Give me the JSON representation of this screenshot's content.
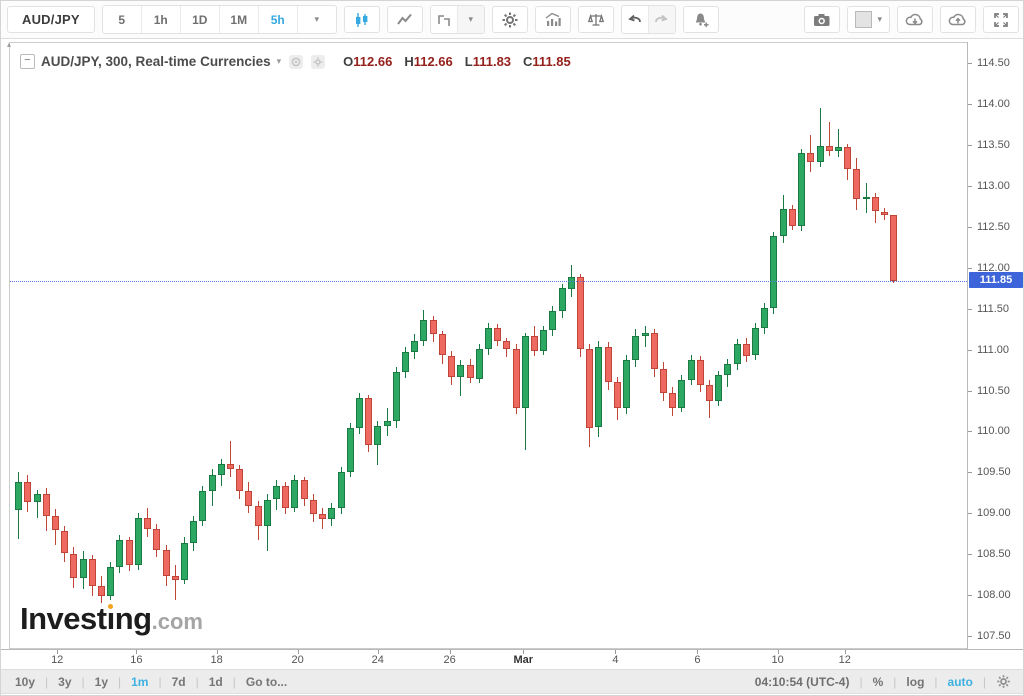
{
  "toolbar": {
    "symbol": "AUD/JPY",
    "intervals": [
      "5",
      "1h",
      "1D",
      "1M",
      "5h"
    ],
    "active_interval": "5h",
    "caret": "▾"
  },
  "legend": {
    "collapse_glyph": "−",
    "title": "AUD/JPY, 300, Real-time Currencies",
    "caret": "▾",
    "ohlc": [
      {
        "k": "O",
        "v": "112.66"
      },
      {
        "k": "H",
        "v": "112.66"
      },
      {
        "k": "L",
        "v": "111.83"
      },
      {
        "k": "C",
        "v": "111.85"
      }
    ]
  },
  "watermark": {
    "text": "Investing.com",
    "p1": "Invest",
    "p2": "ng",
    "suffix": ".com"
  },
  "price_scale": {
    "tag": "111.85"
  },
  "bottom_bar": {
    "ranges": [
      "10y",
      "3y",
      "1y",
      "1m",
      "7d",
      "1d"
    ],
    "active_range": "1m",
    "goto_label": "Go to...",
    "clock": "04:10:54 (UTC-4)",
    "percent_label": "%",
    "log_label": "log",
    "auto_label": "auto",
    "separator": "|"
  },
  "colors": {
    "up_fill": "#2DA863",
    "up_stroke": "#1B7A44",
    "down_fill": "#EE6A60",
    "down_stroke": "#BF4539",
    "accent_blue": "#35A9E0",
    "tag_blue": "#3D64D8",
    "line_blue": "#5A78DC",
    "ohlc_red": "#94211C",
    "axis_text": "#555555",
    "icon_gray": "#8A8A8A"
  },
  "chart_data": {
    "type": "candlestick",
    "title": "AUD/JPY, 300, Real-time Currencies",
    "symbol": "AUD/JPY",
    "interval_minutes": 300,
    "grid": false,
    "legend_position": "top-left",
    "ylim": [
      107.34,
      114.76
    ],
    "y_ticks": [
      114.5,
      114.0,
      113.5,
      113.0,
      112.5,
      112.0,
      111.5,
      111.0,
      110.5,
      110.0,
      109.5,
      109.0,
      108.5,
      108.0,
      107.5
    ],
    "x_ticks": [
      {
        "label": "12",
        "index": 4.3
      },
      {
        "label": "16",
        "index": 12.9
      },
      {
        "label": "18",
        "index": 21.6
      },
      {
        "label": "20",
        "index": 30.4
      },
      {
        "label": "24",
        "index": 39.1
      },
      {
        "label": "26",
        "index": 46.9
      },
      {
        "label": "Mar",
        "index": 54.9,
        "bold": true
      },
      {
        "label": "4",
        "index": 64.9
      },
      {
        "label": "6",
        "index": 73.8
      },
      {
        "label": "10",
        "index": 82.5
      },
      {
        "label": "12",
        "index": 89.8
      }
    ],
    "last_price": 111.85,
    "last_price_line": "dotted-blue",
    "last_ohlc": {
      "open": 112.66,
      "high": 112.66,
      "low": 111.83,
      "close": 111.85
    },
    "candles": [
      [
        109.05,
        109.52,
        108.7,
        109.4
      ],
      [
        109.4,
        109.48,
        109.02,
        109.15
      ],
      [
        109.15,
        109.3,
        108.95,
        109.25
      ],
      [
        109.25,
        109.32,
        108.8,
        108.98
      ],
      [
        108.98,
        109.06,
        108.62,
        108.8
      ],
      [
        108.8,
        108.86,
        108.42,
        108.52
      ],
      [
        108.52,
        108.6,
        108.1,
        108.22
      ],
      [
        108.22,
        108.55,
        108.08,
        108.45
      ],
      [
        108.45,
        108.5,
        108.0,
        108.12
      ],
      [
        108.12,
        108.25,
        107.92,
        108.0
      ],
      [
        108.0,
        108.42,
        107.95,
        108.35
      ],
      [
        108.35,
        108.75,
        108.28,
        108.68
      ],
      [
        108.68,
        108.72,
        108.3,
        108.38
      ],
      [
        108.38,
        109.02,
        108.32,
        108.95
      ],
      [
        108.95,
        109.08,
        108.72,
        108.82
      ],
      [
        108.82,
        108.88,
        108.48,
        108.56
      ],
      [
        108.56,
        108.62,
        108.12,
        108.24
      ],
      [
        108.24,
        108.38,
        107.95,
        108.2
      ],
      [
        108.2,
        108.72,
        108.15,
        108.65
      ],
      [
        108.65,
        108.98,
        108.55,
        108.92
      ],
      [
        108.92,
        109.35,
        108.85,
        109.28
      ],
      [
        109.28,
        109.55,
        109.1,
        109.48
      ],
      [
        109.48,
        109.68,
        109.35,
        109.62
      ],
      [
        109.62,
        109.9,
        109.45,
        109.55
      ],
      [
        109.55,
        109.6,
        109.18,
        109.28
      ],
      [
        109.28,
        109.4,
        109.02,
        109.1
      ],
      [
        109.1,
        109.16,
        108.68,
        108.86
      ],
      [
        108.86,
        109.25,
        108.55,
        109.18
      ],
      [
        109.18,
        109.42,
        109.05,
        109.35
      ],
      [
        109.35,
        109.4,
        109.0,
        109.08
      ],
      [
        109.08,
        109.48,
        109.02,
        109.42
      ],
      [
        109.42,
        109.46,
        109.1,
        109.18
      ],
      [
        109.18,
        109.25,
        108.9,
        109.0
      ],
      [
        109.0,
        109.08,
        108.82,
        108.94
      ],
      [
        108.94,
        109.14,
        108.86,
        109.08
      ],
      [
        109.08,
        109.58,
        109.0,
        109.52
      ],
      [
        109.52,
        110.12,
        109.45,
        110.05
      ],
      [
        110.05,
        110.48,
        109.98,
        110.42
      ],
      [
        110.42,
        110.46,
        109.76,
        109.84
      ],
      [
        109.84,
        110.14,
        109.6,
        110.08
      ],
      [
        110.08,
        110.3,
        109.95,
        110.14
      ],
      [
        110.14,
        110.8,
        110.06,
        110.74
      ],
      [
        110.74,
        111.04,
        110.66,
        110.98
      ],
      [
        110.98,
        111.2,
        110.9,
        111.12
      ],
      [
        111.12,
        111.5,
        111.05,
        111.38
      ],
      [
        111.38,
        111.42,
        111.1,
        111.2
      ],
      [
        111.2,
        111.24,
        110.84,
        110.94
      ],
      [
        110.94,
        111.0,
        110.58,
        110.68
      ],
      [
        110.68,
        110.88,
        110.45,
        110.82
      ],
      [
        110.82,
        110.9,
        110.6,
        110.66
      ],
      [
        110.66,
        111.08,
        110.6,
        111.02
      ],
      [
        111.02,
        111.34,
        110.95,
        111.28
      ],
      [
        111.28,
        111.32,
        111.06,
        111.12
      ],
      [
        111.12,
        111.16,
        110.92,
        111.02
      ],
      [
        111.02,
        111.08,
        110.22,
        110.3
      ],
      [
        110.3,
        111.22,
        109.79,
        111.18
      ],
      [
        111.18,
        111.3,
        110.94,
        111.0
      ],
      [
        111.0,
        111.3,
        110.95,
        111.25
      ],
      [
        111.25,
        111.55,
        111.18,
        111.48
      ],
      [
        111.48,
        111.82,
        111.4,
        111.76
      ],
      [
        111.76,
        112.05,
        111.66,
        111.9
      ],
      [
        111.9,
        111.94,
        110.92,
        111.02
      ],
      [
        111.02,
        111.08,
        109.82,
        110.06
      ],
      [
        110.06,
        111.12,
        109.94,
        111.04
      ],
      [
        111.04,
        111.1,
        110.52,
        110.62
      ],
      [
        110.62,
        110.68,
        110.15,
        110.3
      ],
      [
        110.3,
        110.95,
        110.22,
        110.88
      ],
      [
        110.88,
        111.26,
        110.8,
        111.18
      ],
      [
        111.18,
        111.3,
        111.04,
        111.22
      ],
      [
        111.22,
        111.26,
        110.68,
        110.78
      ],
      [
        110.78,
        110.86,
        110.38,
        110.48
      ],
      [
        110.48,
        110.56,
        110.2,
        110.3
      ],
      [
        110.3,
        110.7,
        110.25,
        110.64
      ],
      [
        110.64,
        110.95,
        110.58,
        110.88
      ],
      [
        110.88,
        110.94,
        110.5,
        110.58
      ],
      [
        110.58,
        110.64,
        110.18,
        110.38
      ],
      [
        110.38,
        110.75,
        110.32,
        110.7
      ],
      [
        110.7,
        110.9,
        110.56,
        110.84
      ],
      [
        110.84,
        111.14,
        110.76,
        111.08
      ],
      [
        111.08,
        111.16,
        110.86,
        110.94
      ],
      [
        110.94,
        111.34,
        110.88,
        111.28
      ],
      [
        111.28,
        111.58,
        111.2,
        111.52
      ],
      [
        111.52,
        112.45,
        111.45,
        112.4
      ],
      [
        112.4,
        112.9,
        112.32,
        112.73
      ],
      [
        112.73,
        112.78,
        112.48,
        112.52
      ],
      [
        112.52,
        113.46,
        112.46,
        113.42
      ],
      [
        113.42,
        113.64,
        113.18,
        113.3
      ],
      [
        113.3,
        113.97,
        113.24,
        113.5
      ],
      [
        113.5,
        113.79,
        113.38,
        113.44
      ],
      [
        113.44,
        113.71,
        113.36,
        113.49
      ],
      [
        113.49,
        113.53,
        113.08,
        113.22
      ],
      [
        113.22,
        113.35,
        112.72,
        112.85
      ],
      [
        112.85,
        113.05,
        112.68,
        112.88
      ],
      [
        112.88,
        112.93,
        112.56,
        112.7
      ],
      [
        112.7,
        112.74,
        112.6,
        112.66
      ],
      [
        112.66,
        112.66,
        111.83,
        111.85
      ]
    ]
  }
}
